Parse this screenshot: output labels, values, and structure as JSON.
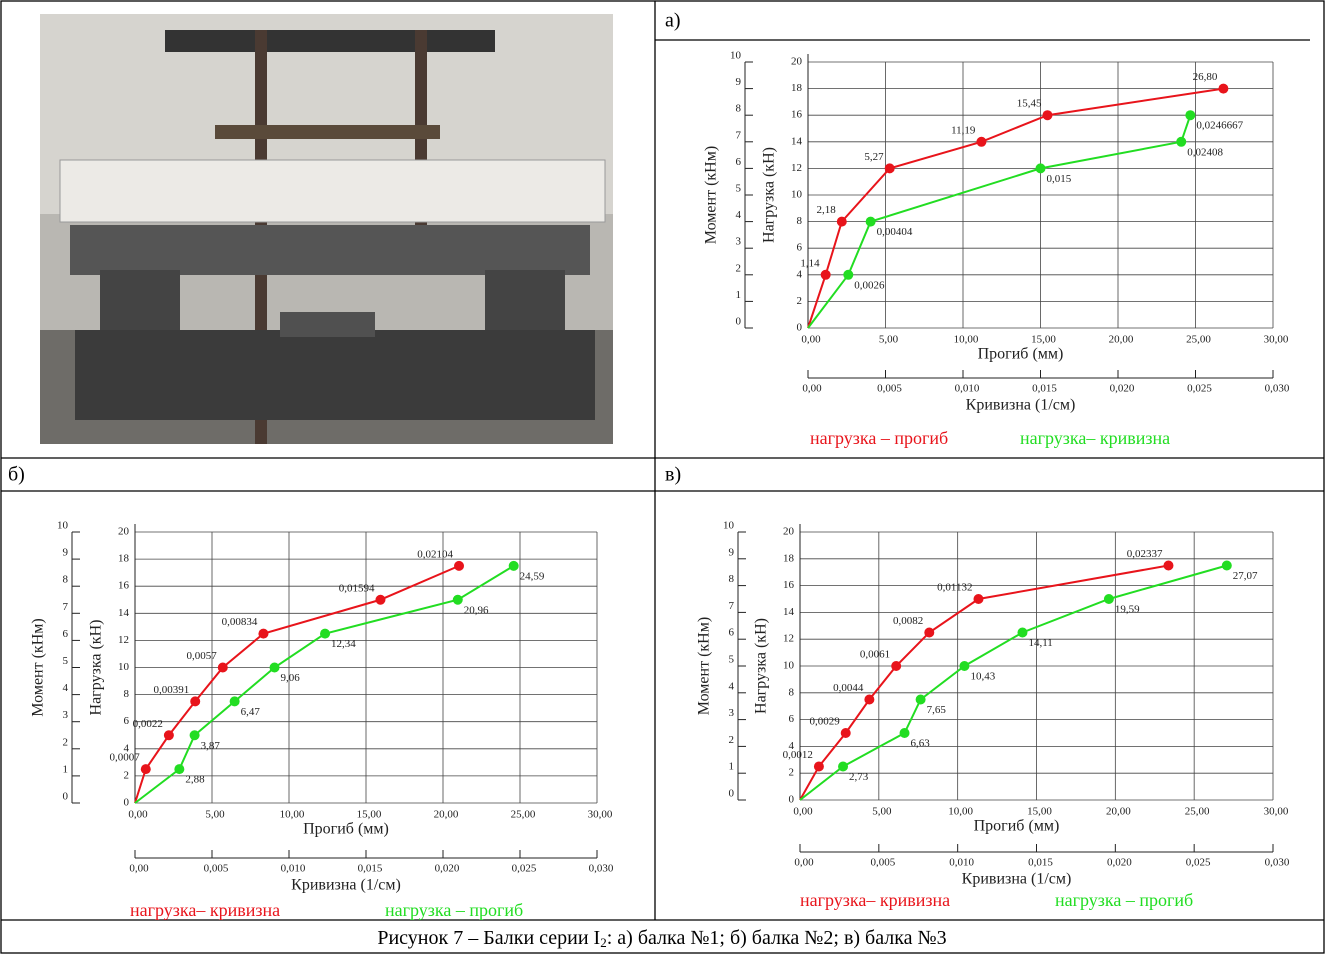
{
  "chart_data": [
    {
      "type": "line",
      "panel": "а)",
      "y_label": "Нагрузка (кН)",
      "y2_label": "Момент (кНм)",
      "x_label": "Прогиб (мм)",
      "x2_label": "Кривизна (1/см)",
      "xlim": [
        0,
        30
      ],
      "xticks": [
        {
          "value": 0,
          "label": "0,00"
        },
        {
          "value": 5,
          "label": "5,00"
        },
        {
          "value": 10,
          "label": "10,00"
        },
        {
          "value": 15,
          "label": "15,00"
        },
        {
          "value": 20,
          "label": "20,00"
        },
        {
          "value": 25,
          "label": "25,00"
        },
        {
          "value": 30,
          "label": "30,00"
        }
      ],
      "x2lim": [
        0,
        0.03
      ],
      "x2ticks": [
        {
          "value": 0,
          "label": "0,00"
        },
        {
          "value": 0.005,
          "label": "0,005"
        },
        {
          "value": 0.01,
          "label": "0,010"
        },
        {
          "value": 0.015,
          "label": "0,015"
        },
        {
          "value": 0.02,
          "label": "0,020"
        },
        {
          "value": 0.025,
          "label": "0,025"
        },
        {
          "value": 0.03,
          "label": "0,030"
        }
      ],
      "ylim": [
        0,
        20
      ],
      "yticks": [
        0,
        2,
        4,
        6,
        8,
        10,
        12,
        14,
        16,
        18,
        20
      ],
      "y2lim": [
        0,
        10
      ],
      "y2ticks": [
        0,
        1,
        2,
        3,
        4,
        5,
        6,
        7,
        8,
        9,
        10
      ],
      "grid": true,
      "series": [
        {
          "name": "нагрузка – прогиб",
          "color": "#e8141b",
          "xaxis": "x",
          "x": [
            0,
            1.14,
            2.18,
            5.27,
            11.19,
            15.45,
            26.8
          ],
          "values": [
            0,
            4,
            8,
            12,
            14,
            16,
            18
          ],
          "value_labels": [
            null,
            "1,14",
            "2,18",
            "5,27",
            "11,19",
            "15,45",
            "26,80"
          ]
        },
        {
          "name": "нагрузка– кривизна",
          "color": "#22dd22",
          "xaxis": "x2",
          "x": [
            0,
            0.0026,
            0.00404,
            0.015,
            0.02408,
            0.0246667
          ],
          "values": [
            0,
            4,
            8,
            12,
            14,
            16
          ],
          "value_labels": [
            null,
            "0,0026",
            "0,00404",
            "0,015",
            "0,02408",
            "0,0246667"
          ]
        }
      ]
    },
    {
      "type": "line",
      "panel": "б)",
      "y_label": "Нагрузка (кН)",
      "y2_label": "Момент (кНм)",
      "x_label": "Прогиб (мм)",
      "x2_label": "Кривизна (1/см)",
      "xlim": [
        0,
        30
      ],
      "xticks": [
        {
          "value": 0,
          "label": "0,00"
        },
        {
          "value": 5,
          "label": "5,00"
        },
        {
          "value": 10,
          "label": "10,00"
        },
        {
          "value": 15,
          "label": "15,00"
        },
        {
          "value": 20,
          "label": "20,00"
        },
        {
          "value": 25,
          "label": "25,00"
        },
        {
          "value": 30,
          "label": "30,00"
        }
      ],
      "x2lim": [
        0,
        0.03
      ],
      "x2ticks": [
        {
          "value": 0,
          "label": "0,00"
        },
        {
          "value": 0.005,
          "label": "0,005"
        },
        {
          "value": 0.01,
          "label": "0,010"
        },
        {
          "value": 0.015,
          "label": "0,015"
        },
        {
          "value": 0.02,
          "label": "0,020"
        },
        {
          "value": 0.025,
          "label": "0,025"
        },
        {
          "value": 0.03,
          "label": "0,030"
        }
      ],
      "ylim": [
        0,
        20
      ],
      "yticks": [
        0,
        2,
        4,
        6,
        8,
        10,
        12,
        14,
        16,
        18,
        20
      ],
      "y2lim": [
        0,
        10
      ],
      "y2ticks": [
        0,
        1,
        2,
        3,
        4,
        5,
        6,
        7,
        8,
        9,
        10
      ],
      "grid": true,
      "series": [
        {
          "name": "нагрузка– кривизна",
          "color": "#e8141b",
          "xaxis": "x2",
          "x": [
            0,
            0.0007,
            0.0022,
            0.00391,
            0.0057,
            0.00834,
            0.01594,
            0.02104
          ],
          "values": [
            0,
            2.5,
            5,
            7.5,
            10,
            12.5,
            15,
            17.5
          ],
          "value_labels": [
            null,
            "0,0007",
            "0,0022",
            "0,00391",
            "0,0057",
            "0,00834",
            "0,01594",
            "0,02104"
          ]
        },
        {
          "name": "нагрузка – прогиб",
          "color": "#22dd22",
          "xaxis": "x",
          "x": [
            0,
            2.88,
            3.87,
            6.47,
            9.06,
            12.34,
            20.96,
            24.59
          ],
          "values": [
            0,
            2.5,
            5,
            7.5,
            10,
            12.5,
            15,
            17.5
          ],
          "value_labels": [
            null,
            "2,88",
            "3,87",
            "6,47",
            "9,06",
            "12,34",
            "20,96",
            "24,59"
          ]
        }
      ]
    },
    {
      "type": "line",
      "panel": "в)",
      "y_label": "Нагрузка (кН)",
      "y2_label": "Момент (кНм)",
      "x_label": "Прогиб (мм)",
      "x2_label": "Кривизна (1/см)",
      "xlim": [
        0,
        30
      ],
      "xticks": [
        {
          "value": 0,
          "label": "0,00"
        },
        {
          "value": 5,
          "label": "5,00"
        },
        {
          "value": 10,
          "label": "10,00"
        },
        {
          "value": 15,
          "label": "15,00"
        },
        {
          "value": 20,
          "label": "20,00"
        },
        {
          "value": 25,
          "label": "25,00"
        },
        {
          "value": 30,
          "label": "30,00"
        }
      ],
      "x2lim": [
        0,
        0.03
      ],
      "x2ticks": [
        {
          "value": 0,
          "label": "0,00"
        },
        {
          "value": 0.005,
          "label": "0,005"
        },
        {
          "value": 0.01,
          "label": "0,010"
        },
        {
          "value": 0.015,
          "label": "0,015"
        },
        {
          "value": 0.02,
          "label": "0,020"
        },
        {
          "value": 0.025,
          "label": "0,025"
        },
        {
          "value": 0.03,
          "label": "0,030"
        }
      ],
      "ylim": [
        0,
        20
      ],
      "yticks": [
        0,
        2,
        4,
        6,
        8,
        10,
        12,
        14,
        16,
        18,
        20
      ],
      "y2lim": [
        0,
        10
      ],
      "y2ticks": [
        0,
        1,
        2,
        3,
        4,
        5,
        6,
        7,
        8,
        9,
        10
      ],
      "grid": true,
      "series": [
        {
          "name": "нагрузка– кривизна",
          "color": "#e8141b",
          "xaxis": "x2",
          "x": [
            0,
            0.0012,
            0.0029,
            0.0044,
            0.0061,
            0.0082,
            0.01132,
            0.02337
          ],
          "values": [
            0,
            2.5,
            5,
            7.5,
            10,
            12.5,
            15,
            17.5
          ],
          "value_labels": [
            null,
            "0,0012",
            "0,0029",
            "0,0044",
            "0,0061",
            "0,0082",
            "0,01132",
            "0,02337"
          ]
        },
        {
          "name": "нагрузка – прогиб",
          "color": "#22dd22",
          "xaxis": "x",
          "x": [
            0,
            2.73,
            6.63,
            7.65,
            10.43,
            14.11,
            19.59,
            27.07
          ],
          "values": [
            0,
            2.5,
            5,
            7.5,
            10,
            12.5,
            15,
            17.5
          ],
          "value_labels": [
            null,
            "2,73",
            "6,63",
            "7,65",
            "10,43",
            "14,11",
            "19,59",
            "27,07"
          ]
        }
      ]
    }
  ],
  "caption": {
    "before": "Рисунок 7 – Балки серии I",
    "subscript": "2",
    "after": ": а) балка №1; б) балка №2; в) балка №3"
  }
}
